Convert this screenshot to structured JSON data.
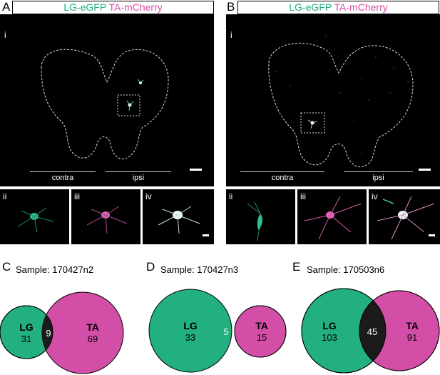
{
  "panel_A": {
    "letter": "A",
    "header_green": "LG-eGFP",
    "header_magenta": "TA-mCherry",
    "main_sub": "i",
    "region_left": "contra",
    "region_right": "ipsi",
    "insets": [
      "ii",
      "iii",
      "iv"
    ]
  },
  "panel_B": {
    "letter": "B",
    "header_green": "LG-eGFP",
    "header_magenta": "TA-mCherry",
    "main_sub": "i",
    "region_left": "contra",
    "region_right": "ipsi",
    "insets": [
      "ii",
      "iii",
      "iv"
    ]
  },
  "venns": [
    {
      "letter": "C",
      "sample": "Sample: 170427n2",
      "left_label": "LG",
      "left_count": "31",
      "overlap": "9",
      "right_label": "TA",
      "right_count": "69"
    },
    {
      "letter": "D",
      "sample": "Sample: 170427n3",
      "left_label": "LG",
      "left_count": "33",
      "overlap": "5",
      "right_label": "TA",
      "right_count": "15"
    },
    {
      "letter": "E",
      "sample": "Sample: 170503n6",
      "left_label": "LG",
      "left_count": "103",
      "overlap": "45",
      "right_label": "TA",
      "right_count": "91"
    }
  ],
  "colors": {
    "green": "#21b07e",
    "magenta": "#d34fa7",
    "overlap": "#1c1a1b",
    "background": "#000000"
  }
}
